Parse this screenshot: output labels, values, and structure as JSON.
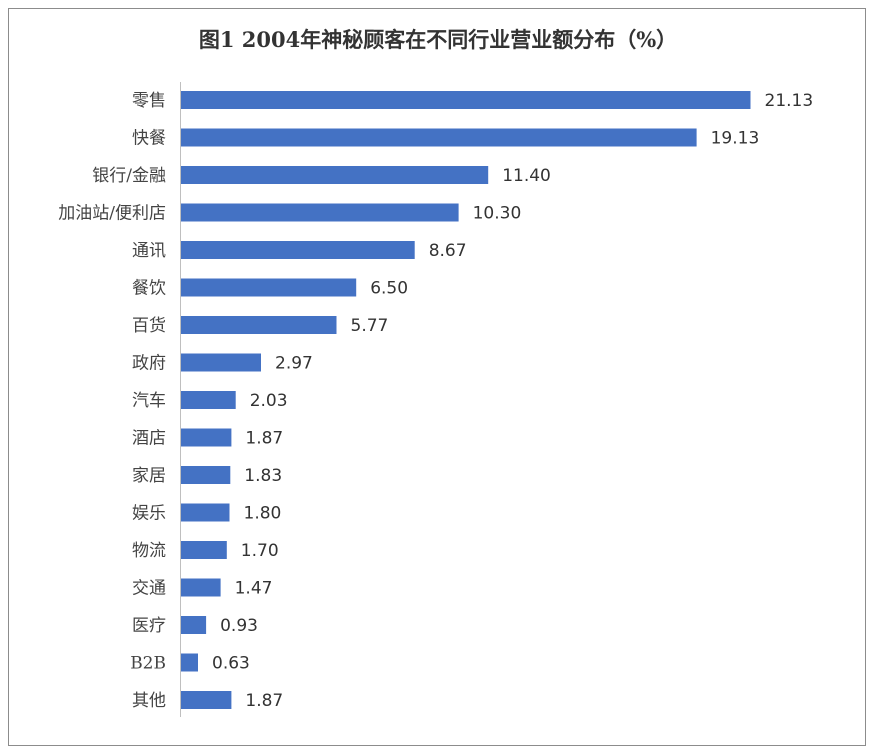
{
  "chart_data": {
    "type": "bar",
    "orientation": "horizontal",
    "title": "图1 2004年神秘顾客在不同行业营业额分布（%）",
    "categories": [
      "零售",
      "快餐",
      "银行/金融",
      "加油站/便利店",
      "通讯",
      "餐饮",
      "百货",
      "政府",
      "汽车",
      "酒店",
      "家居",
      "娱乐",
      "物流",
      "交通",
      "医疗",
      "B2B",
      "其他"
    ],
    "values": [
      21.13,
      19.13,
      11.4,
      10.3,
      8.67,
      6.5,
      5.77,
      2.97,
      2.03,
      1.87,
      1.83,
      1.8,
      1.7,
      1.47,
      0.93,
      0.63,
      1.87
    ],
    "value_labels": [
      "21.13",
      "19.13",
      "11.40",
      "10.30",
      "8.67",
      "6.50",
      "5.77",
      "2.97",
      "2.03",
      "1.87",
      "1.83",
      "1.80",
      "1.70",
      "1.47",
      "0.93",
      "0.63",
      "1.87"
    ],
    "bar_color": "#4472c4",
    "grid": false,
    "legend": "none"
  }
}
